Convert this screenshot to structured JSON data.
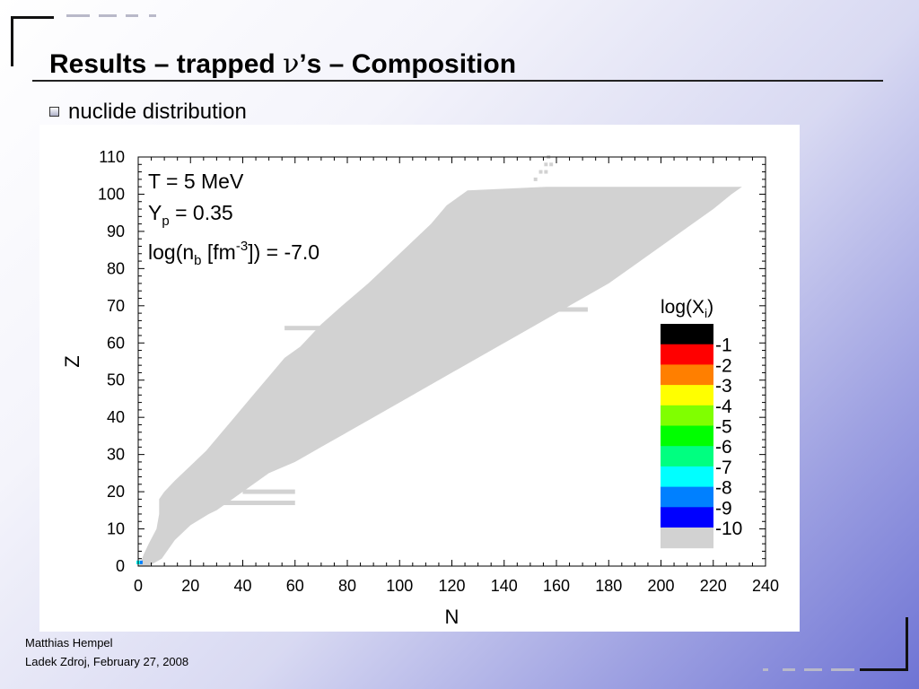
{
  "slide": {
    "title_prefix": "Results – trapped ",
    "title_symbol": "ν",
    "title_suffix": "’s – Composition",
    "bullet": "nuclide distribution"
  },
  "footer": {
    "author": "Matthias Hempel",
    "event": "Ladek Zdroj, February 27, 2008"
  },
  "colors": {
    "nuclide_fill": "#d2d2d2",
    "frame": "#111111",
    "background_accent": "#6f74d4"
  },
  "chart_data": {
    "type": "heatmap",
    "title": "",
    "xlabel": "N",
    "ylabel": "Z",
    "xlim": [
      0,
      240
    ],
    "ylim": [
      0,
      110
    ],
    "x_ticks": [
      "0",
      "20",
      "40",
      "60",
      "80",
      "100",
      "120",
      "140",
      "160",
      "180",
      "200",
      "220",
      "240"
    ],
    "y_ticks": [
      "0",
      "10",
      "20",
      "30",
      "40",
      "50",
      "60",
      "70",
      "80",
      "90",
      "100",
      "110"
    ],
    "grid": false,
    "annotations": {
      "temperature": "T = 5 MeV",
      "yp_base": "Y",
      "yp_sub": "p",
      "yp_value": " = 0.35",
      "nb_a": "log(n",
      "nb_sub": "b",
      "nb_b": " [fm",
      "nb_sup": "-3",
      "nb_c": "]) = -7.0"
    },
    "colorbar": {
      "title_base": "log(X",
      "title_sub": "i",
      "title_end": ")",
      "bins": [
        {
          "label": "",
          "color": "#000000"
        },
        {
          "label": "-1",
          "color": "#ff0000"
        },
        {
          "label": "-2",
          "color": "#ff7f00"
        },
        {
          "label": "-3",
          "color": "#ffff00"
        },
        {
          "label": "-4",
          "color": "#80ff00"
        },
        {
          "label": "-5",
          "color": "#00ff00"
        },
        {
          "label": "-6",
          "color": "#00ff80"
        },
        {
          "label": "-7",
          "color": "#00ffff"
        },
        {
          "label": "-8",
          "color": "#0080ff"
        },
        {
          "label": "-9",
          "color": "#0000ff"
        },
        {
          "label": "-10",
          "color": "#d2d2d2"
        }
      ]
    },
    "dominant_level": "-10",
    "region_boundary_N_Z": {
      "upper_left_edge": [
        [
          0,
          0
        ],
        [
          1,
          1
        ],
        [
          2,
          3
        ],
        [
          4,
          6
        ],
        [
          7,
          10
        ],
        [
          8,
          14
        ],
        [
          8,
          18
        ],
        [
          10,
          20
        ],
        [
          14,
          23
        ],
        [
          20,
          27
        ],
        [
          26,
          31
        ],
        [
          32,
          36
        ],
        [
          38,
          41
        ],
        [
          44,
          46
        ],
        [
          50,
          51
        ],
        [
          56,
          56
        ],
        [
          62,
          59
        ],
        [
          66,
          62
        ],
        [
          70,
          65
        ],
        [
          78,
          70
        ],
        [
          88,
          76
        ],
        [
          100,
          84
        ],
        [
          112,
          92
        ],
        [
          118,
          97
        ],
        [
          126,
          101
        ],
        [
          156,
          102
        ],
        [
          231,
          102
        ]
      ],
      "lower_right_edge": [
        [
          231,
          102
        ],
        [
          227,
          100
        ],
        [
          220,
          96
        ],
        [
          210,
          91
        ],
        [
          200,
          86
        ],
        [
          190,
          81
        ],
        [
          180,
          76
        ],
        [
          170,
          72
        ],
        [
          160,
          68
        ],
        [
          150,
          64
        ],
        [
          140,
          60
        ],
        [
          130,
          56
        ],
        [
          120,
          52
        ],
        [
          110,
          48
        ],
        [
          100,
          44
        ],
        [
          90,
          40
        ],
        [
          80,
          36
        ],
        [
          70,
          32
        ],
        [
          60,
          28
        ],
        [
          50,
          25
        ],
        [
          40,
          20
        ],
        [
          30,
          15
        ],
        [
          27,
          14
        ],
        [
          20,
          11
        ],
        [
          14,
          7
        ],
        [
          9,
          2
        ],
        [
          4,
          0
        ],
        [
          0,
          0
        ]
      ],
      "stripes": [
        {
          "z": 64,
          "n_from": 56,
          "n_to": 80
        },
        {
          "z": 69,
          "n_from": 150,
          "n_to": 172
        },
        {
          "z": 70,
          "n_from": 150,
          "n_to": 160
        },
        {
          "z": 17,
          "n_from": 30,
          "n_to": 60
        },
        {
          "z": 20,
          "n_from": 40,
          "n_to": 60
        }
      ],
      "isolated_cells": [
        {
          "n": 152,
          "z": 104
        },
        {
          "n": 154,
          "z": 106
        },
        {
          "n": 156,
          "z": 106
        },
        {
          "n": 156,
          "z": 108
        },
        {
          "n": 158,
          "z": 108
        },
        {
          "n": 157,
          "z": 110
        }
      ],
      "light_nuclei_highlight": [
        {
          "n": 1,
          "z": 1,
          "color": "#0080ff"
        },
        {
          "n": 0,
          "z": 1,
          "color": "#00ffff"
        }
      ]
    }
  }
}
